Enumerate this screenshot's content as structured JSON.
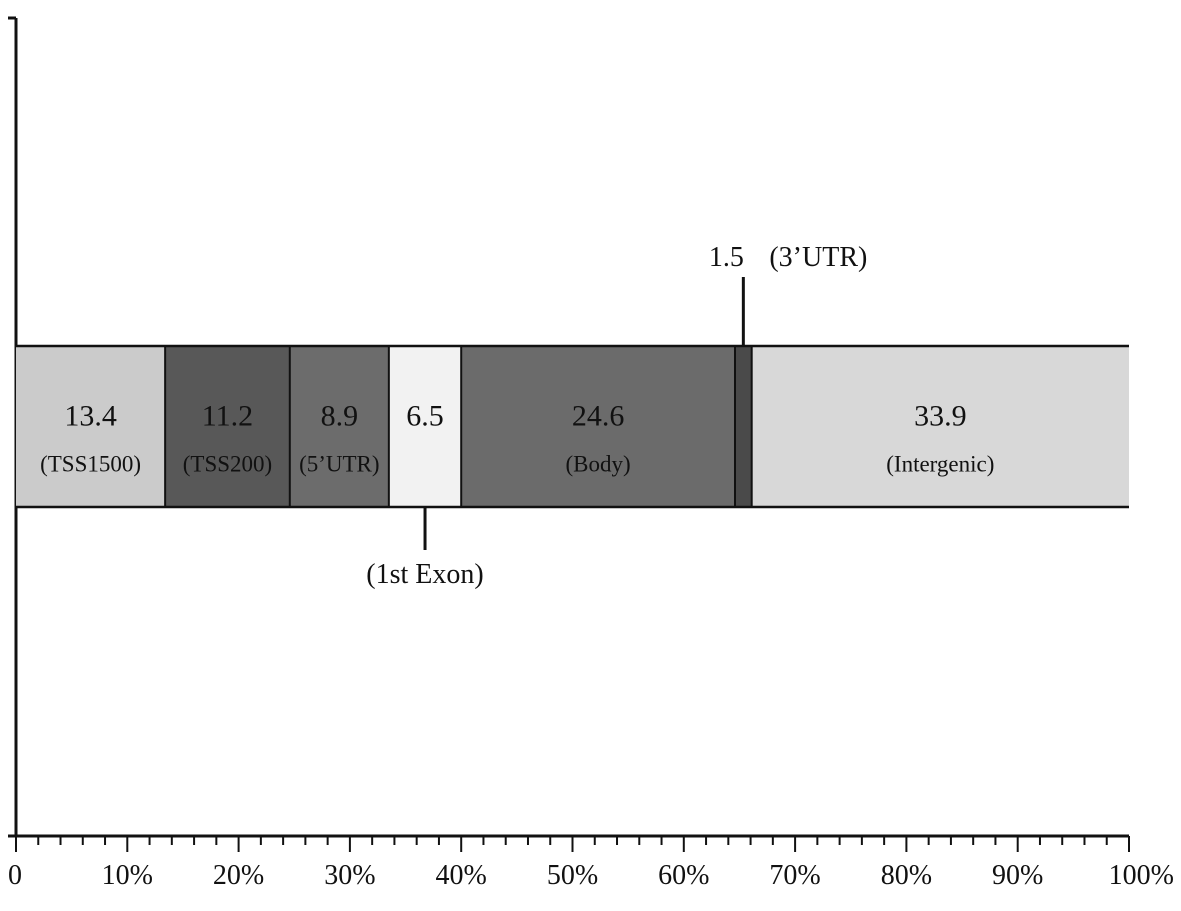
{
  "chart_data": {
    "type": "bar",
    "orientation": "horizontal",
    "stacked": true,
    "xlim": [
      0,
      100
    ],
    "x_tick_labels": [
      "0",
      "10%",
      "20%",
      "30%",
      "40%",
      "50%",
      "60%",
      "70%",
      "80%",
      "90%",
      "100%"
    ],
    "title": "",
    "xlabel": "",
    "ylabel": "",
    "grid": false,
    "segments": [
      {
        "value": 13.4,
        "value_label": "13.4",
        "label": "(TSS1500)",
        "color": "#cbcbcb"
      },
      {
        "value": 11.2,
        "value_label": "11.2",
        "label": "(TSS200)",
        "color": "#585858"
      },
      {
        "value": 8.9,
        "value_label": "8.9",
        "label": "(5’UTR)",
        "color": "#6c6c6c"
      },
      {
        "value": 6.5,
        "value_label": "6.5",
        "label": "(1st Exon)",
        "color": "#f2f2f2",
        "label_position": "below"
      },
      {
        "value": 24.6,
        "value_label": "24.6",
        "label": "(Body)",
        "color": "#6b6b6b"
      },
      {
        "value": 1.5,
        "value_label": "1.5",
        "label": "(3’UTR)",
        "color": "#4a4a4a",
        "label_position": "above"
      },
      {
        "value": 33.9,
        "value_label": "33.9",
        "label": "(Intergenic)",
        "color": "#d8d8d8"
      }
    ]
  }
}
